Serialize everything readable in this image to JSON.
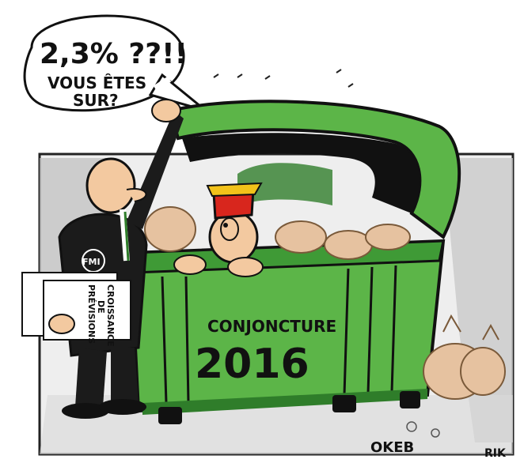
{
  "speech_bubble": {
    "line1": "2,3% ??!!",
    "line2": "VOUS ÊTES",
    "line3": "SUR?"
  },
  "badge": {
    "text": "FMI"
  },
  "document": {
    "line1": "PRÉVISIONS",
    "line2": "DE",
    "line3": "CROISSANCE"
  },
  "dumpster": {
    "label": "CONJONCTURE",
    "year": "2016"
  },
  "signatures": {
    "tag": "OKEB",
    "artist": "RIK"
  },
  "colors": {
    "dumpster_green": "#5cb548",
    "dumpster_dark": "#2f7d2a",
    "suit": "#1b1b1b",
    "skin": "#f3c9a0",
    "hat_red": "#d8261d",
    "hat_yellow": "#f2c21a",
    "bag": "#e6c2a0"
  }
}
